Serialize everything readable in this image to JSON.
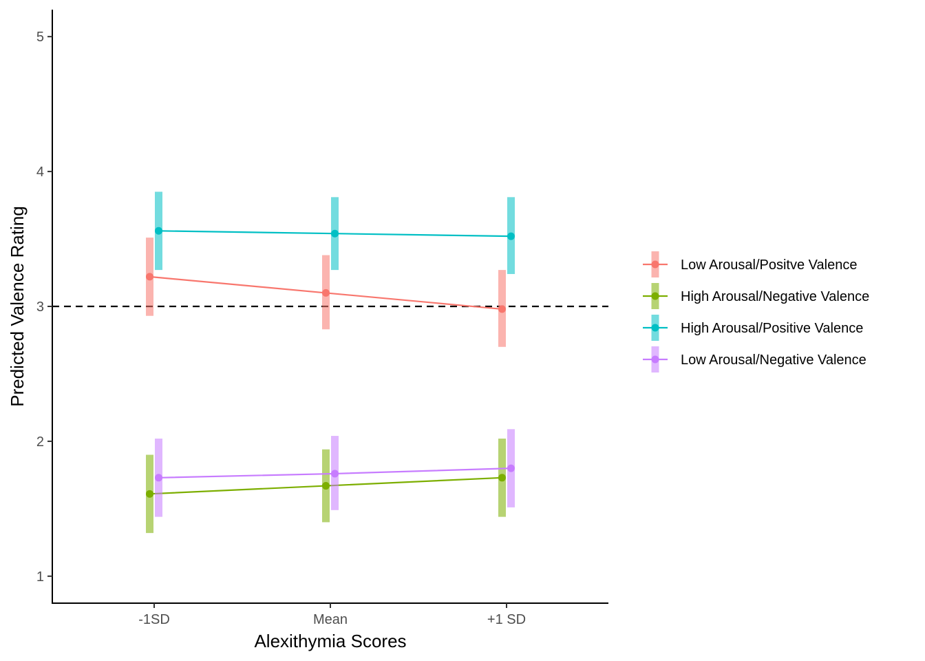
{
  "chart_data": {
    "type": "line",
    "title": "",
    "xlabel": "Alexithymia Scores",
    "ylabel": "Predicted Valence Rating",
    "categories": [
      "-1SD",
      "Mean",
      "+1 SD"
    ],
    "ylim": [
      0.8,
      5.2
    ],
    "yticks": [
      1,
      2,
      3,
      4,
      5
    ],
    "reference_line": {
      "y": 3,
      "style": "dashed",
      "color": "#000000"
    },
    "grid": false,
    "legend_position": "right",
    "series": [
      {
        "name": "Low Arousal/Positve Valence",
        "color": "#F8766D",
        "values": [
          3.22,
          3.1,
          2.98
        ],
        "lower": [
          2.93,
          2.83,
          2.7
        ],
        "upper": [
          3.51,
          3.38,
          3.27
        ]
      },
      {
        "name": "High Arousal/Negative Valence",
        "color": "#7CAE00",
        "values": [
          1.61,
          1.67,
          1.73
        ],
        "lower": [
          1.32,
          1.4,
          1.44
        ],
        "upper": [
          1.9,
          1.94,
          2.02
        ]
      },
      {
        "name": "High Arousal/Positive Valence",
        "color": "#00BFC4",
        "values": [
          3.56,
          3.54,
          3.52
        ],
        "lower": [
          3.27,
          3.27,
          3.24
        ],
        "upper": [
          3.85,
          3.81,
          3.81
        ]
      },
      {
        "name": "Low Arousal/Negative Valence",
        "color": "#C77CFF",
        "values": [
          1.73,
          1.76,
          1.8
        ],
        "lower": [
          1.44,
          1.49,
          1.51
        ],
        "upper": [
          2.02,
          2.04,
          2.09
        ]
      }
    ]
  }
}
